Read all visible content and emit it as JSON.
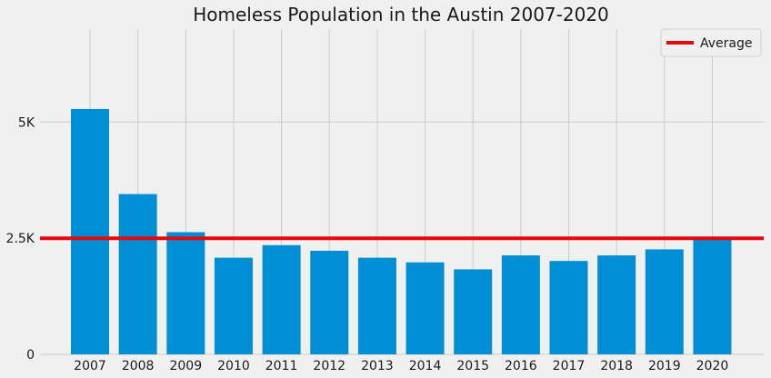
{
  "chart_data": {
    "type": "bar",
    "title": "Homeless Population in the Austin 2007-2020",
    "xlabel": "",
    "ylabel": "",
    "categories": [
      "2007",
      "2008",
      "2009",
      "2010",
      "2011",
      "2012",
      "2013",
      "2014",
      "2015",
      "2016",
      "2017",
      "2018",
      "2019",
      "2020"
    ],
    "values": [
      5280,
      3450,
      2630,
      2080,
      2350,
      2230,
      2080,
      1980,
      1830,
      2130,
      2010,
      2130,
      2260,
      2510
    ],
    "ylim": [
      0,
      7000
    ],
    "yticks": [
      {
        "value": 0,
        "label": "0"
      },
      {
        "value": 2500,
        "label": "2.5K"
      },
      {
        "value": 5000,
        "label": "5K"
      }
    ],
    "average": {
      "name": "Average",
      "value": 2497
    },
    "bar_color": "#008fd5",
    "average_color": "#e5090f",
    "grid": true,
    "legend_position": "top-right"
  }
}
